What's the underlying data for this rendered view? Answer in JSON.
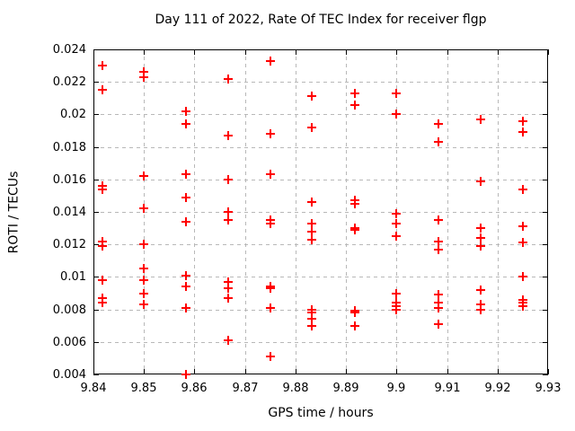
{
  "chart_data": {
    "type": "scatter",
    "title": "Day 111 of 2022, Rate Of TEC Index for receiver flgp",
    "xlabel": "GPS time / hours",
    "ylabel": "ROTI / TECUs",
    "xlim": [
      9.84,
      9.93
    ],
    "ylim": [
      0.004,
      0.024
    ],
    "grid": true,
    "legend_position": "none",
    "marker": {
      "shape": "plus",
      "color": "#ff0000",
      "name": "plus-marker"
    },
    "xticks": {
      "values": [
        9.84,
        9.85,
        9.86,
        9.87,
        9.88,
        9.89,
        9.9,
        9.91,
        9.92,
        9.93
      ],
      "labels": [
        "9.84",
        "9.85",
        "9.86",
        "9.87",
        "9.88",
        "9.89",
        "9.9",
        "9.91",
        "9.92",
        "9.93"
      ]
    },
    "yticks": {
      "values": [
        0.004,
        0.006,
        0.008,
        0.01,
        0.012,
        0.014,
        0.016,
        0.018,
        0.02,
        0.022,
        0.024
      ],
      "labels": [
        "0.004",
        "0.006",
        "0.008",
        "0.01",
        "0.012",
        "0.014",
        "0.016",
        "0.018",
        "0.02",
        "0.022",
        "0.024"
      ]
    },
    "series": [
      {
        "name": "ROTI",
        "points": [
          [
            9.8417,
            0.023
          ],
          [
            9.8417,
            0.0215
          ],
          [
            9.8417,
            0.0156
          ],
          [
            9.8417,
            0.0154
          ],
          [
            9.8417,
            0.0122
          ],
          [
            9.8417,
            0.0119
          ],
          [
            9.8417,
            0.0098
          ],
          [
            9.8417,
            0.0087
          ],
          [
            9.8417,
            0.0084
          ],
          [
            9.85,
            0.0226
          ],
          [
            9.85,
            0.0223
          ],
          [
            9.85,
            0.0162
          ],
          [
            9.85,
            0.0142
          ],
          [
            9.85,
            0.012
          ],
          [
            9.85,
            0.0105
          ],
          [
            9.85,
            0.0098
          ],
          [
            9.85,
            0.009
          ],
          [
            9.85,
            0.0083
          ],
          [
            9.8583,
            0.0202
          ],
          [
            9.8583,
            0.0194
          ],
          [
            9.8583,
            0.0163
          ],
          [
            9.8583,
            0.0149
          ],
          [
            9.8583,
            0.0134
          ],
          [
            9.8583,
            0.0101
          ],
          [
            9.8583,
            0.0094
          ],
          [
            9.8583,
            0.0081
          ],
          [
            9.8583,
            0.004
          ],
          [
            9.8667,
            0.0222
          ],
          [
            9.8667,
            0.0187
          ],
          [
            9.8667,
            0.016
          ],
          [
            9.8667,
            0.014
          ],
          [
            9.8667,
            0.0135
          ],
          [
            9.8667,
            0.0097
          ],
          [
            9.8667,
            0.0093
          ],
          [
            9.8667,
            0.0087
          ],
          [
            9.8667,
            0.0061
          ],
          [
            9.875,
            0.0233
          ],
          [
            9.875,
            0.0188
          ],
          [
            9.875,
            0.0163
          ],
          [
            9.875,
            0.0135
          ],
          [
            9.875,
            0.0133
          ],
          [
            9.875,
            0.0094
          ],
          [
            9.875,
            0.0093
          ],
          [
            9.875,
            0.0081
          ],
          [
            9.875,
            0.0051
          ],
          [
            9.8833,
            0.0211
          ],
          [
            9.8833,
            0.0192
          ],
          [
            9.8833,
            0.0146
          ],
          [
            9.8833,
            0.0133
          ],
          [
            9.8833,
            0.0128
          ],
          [
            9.8833,
            0.0123
          ],
          [
            9.8833,
            0.008
          ],
          [
            9.8833,
            0.0078
          ],
          [
            9.8833,
            0.0074
          ],
          [
            9.8833,
            0.007
          ],
          [
            9.8917,
            0.0213
          ],
          [
            9.8917,
            0.0206
          ],
          [
            9.8917,
            0.0147
          ],
          [
            9.8917,
            0.0145
          ],
          [
            9.8917,
            0.013
          ],
          [
            9.8917,
            0.0129
          ],
          [
            9.8917,
            0.0079
          ],
          [
            9.8917,
            0.0078
          ],
          [
            9.8917,
            0.007
          ],
          [
            9.9,
            0.0213
          ],
          [
            9.9,
            0.02
          ],
          [
            9.9,
            0.0139
          ],
          [
            9.9,
            0.0133
          ],
          [
            9.9,
            0.0125
          ],
          [
            9.9,
            0.009
          ],
          [
            9.9,
            0.0084
          ],
          [
            9.9,
            0.0082
          ],
          [
            9.9,
            0.008
          ],
          [
            9.9083,
            0.0194
          ],
          [
            9.9083,
            0.0183
          ],
          [
            9.9083,
            0.0135
          ],
          [
            9.9083,
            0.0122
          ],
          [
            9.9083,
            0.0117
          ],
          [
            9.9083,
            0.0089
          ],
          [
            9.9083,
            0.0084
          ],
          [
            9.9083,
            0.0081
          ],
          [
            9.9083,
            0.0071
          ],
          [
            9.9167,
            0.0197
          ],
          [
            9.9167,
            0.0159
          ],
          [
            9.9167,
            0.013
          ],
          [
            9.9167,
            0.0124
          ],
          [
            9.9167,
            0.0119
          ],
          [
            9.9167,
            0.0092
          ],
          [
            9.9167,
            0.0083
          ],
          [
            9.9167,
            0.008
          ],
          [
            9.925,
            0.0196
          ],
          [
            9.925,
            0.0189
          ],
          [
            9.925,
            0.0154
          ],
          [
            9.925,
            0.0131
          ],
          [
            9.925,
            0.0121
          ],
          [
            9.925,
            0.01
          ],
          [
            9.925,
            0.0086
          ],
          [
            9.925,
            0.0084
          ],
          [
            9.925,
            0.0082
          ]
        ]
      }
    ]
  }
}
